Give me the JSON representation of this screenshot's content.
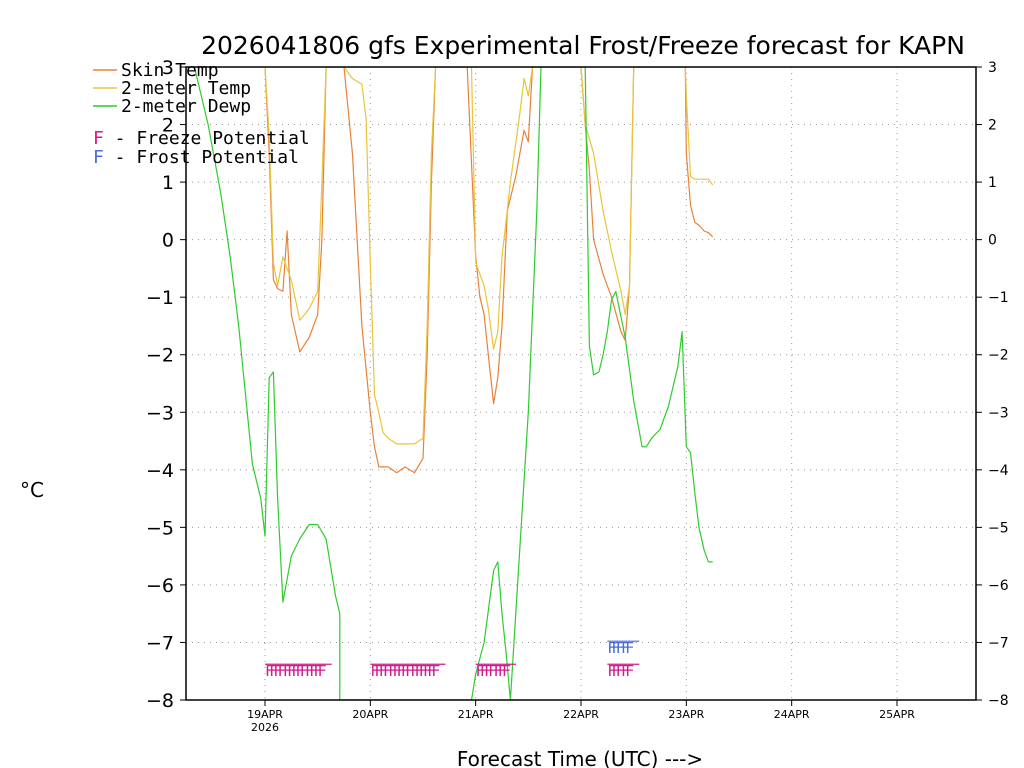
{
  "colors": {
    "skin": "#e8823a",
    "temp2m": "#e8c53a",
    "dewp2m": "#2ecc2e",
    "freeze": "#d21c8c",
    "frost": "#4a6cd4",
    "grid": "#999999"
  },
  "chart_data": {
    "type": "line",
    "title": "2026041806 gfs Experimental Frost/Freeze forecast for KAPN",
    "ylabel": "°C",
    "xlabel": "Forecast Time (UTC) --->",
    "ylim": [
      -8,
      3
    ],
    "xlim": [
      -0.75,
      6.75
    ],
    "yticks": [
      "3",
      "2",
      "1",
      "0",
      "−1",
      "−2",
      "−3",
      "−4",
      "−5",
      "−6",
      "−7",
      "−8"
    ],
    "xticks": [
      {
        "label": "19APR",
        "sub": "2026",
        "day": 0
      },
      {
        "label": "20APR",
        "sub": "",
        "day": 1
      },
      {
        "label": "21APR",
        "sub": "",
        "day": 2
      },
      {
        "label": "22APR",
        "sub": "",
        "day": 3
      },
      {
        "label": "23APR",
        "sub": "",
        "day": 4
      },
      {
        "label": "24APR",
        "sub": "",
        "day": 5
      },
      {
        "label": "25APR",
        "sub": "",
        "day": 6
      }
    ],
    "legend": [
      {
        "label": "Skin Temp",
        "color_key": "skin"
      },
      {
        "label": "2-meter Temp",
        "color_key": "temp2m"
      },
      {
        "label": "2-meter Dewp",
        "color_key": "dewp2m"
      }
    ],
    "potential_legend": [
      {
        "letter": "F",
        "text": " - Freeze Potential",
        "color_key": "freeze"
      },
      {
        "letter": "F",
        "text": " - Frost Potential",
        "color_key": "frost"
      }
    ],
    "series": [
      {
        "name": "Skin Temp",
        "color_key": "skin",
        "x": [
          0.0,
          0.04,
          0.08,
          0.12,
          0.17,
          0.21,
          0.25,
          0.33,
          0.42,
          0.5,
          0.54,
          0.58,
          0.62,
          0.75,
          0.83,
          0.92,
          1.0,
          1.04,
          1.08,
          1.12,
          1.17,
          1.25,
          1.33,
          1.42,
          1.5,
          1.54,
          1.58,
          1.62,
          1.75,
          1.83,
          1.92,
          2.0,
          2.04,
          2.08,
          2.12,
          2.17,
          2.21,
          2.25,
          2.3,
          2.38,
          2.46,
          2.5,
          2.54,
          2.58,
          2.62,
          3.0,
          3.04,
          3.08,
          3.12,
          3.21,
          3.29,
          3.38,
          3.42,
          3.46,
          3.5,
          3.54,
          3.58,
          3.62,
          3.96,
          3.99,
          4.0,
          4.04,
          4.08,
          4.12,
          4.17,
          4.21,
          4.25
        ],
        "y": [
          3,
          1.5,
          -0.7,
          -0.85,
          -0.9,
          0.15,
          -1.3,
          -1.95,
          -1.7,
          -1.3,
          0.0,
          3,
          3,
          3,
          1.5,
          -1.5,
          -3.0,
          -3.6,
          -3.95,
          -3.95,
          -3.95,
          -4.05,
          -3.95,
          -4.05,
          -3.8,
          -2.0,
          1.0,
          3,
          3,
          3,
          3,
          -0.3,
          -1.0,
          -1.3,
          -2.0,
          -2.85,
          -2.4,
          -1.5,
          0.5,
          1.1,
          1.9,
          1.7,
          3,
          3,
          3,
          3,
          2.0,
          1.2,
          0.0,
          -0.6,
          -1.0,
          -1.6,
          -1.75,
          -0.8,
          3,
          3,
          3,
          3,
          3,
          3,
          1.5,
          0.6,
          0.3,
          0.25,
          0.15,
          0.12,
          0.05
        ]
      },
      {
        "name": "2-meter Temp",
        "color_key": "temp2m",
        "x": [
          0.0,
          0.04,
          0.08,
          0.12,
          0.17,
          0.25,
          0.33,
          0.42,
          0.5,
          0.54,
          0.58,
          0.62,
          0.75,
          0.83,
          0.92,
          0.96,
          1.0,
          1.04,
          1.08,
          1.12,
          1.17,
          1.25,
          1.33,
          1.42,
          1.5,
          1.54,
          1.58,
          1.62,
          1.96,
          2.0,
          2.08,
          2.12,
          2.17,
          2.21,
          2.25,
          2.33,
          2.42,
          2.46,
          2.5,
          2.54,
          2.58,
          2.62,
          3.0,
          3.04,
          3.12,
          3.21,
          3.29,
          3.38,
          3.42,
          3.46,
          3.5,
          3.54,
          3.58,
          3.62,
          3.96,
          3.99,
          4.0,
          4.04,
          4.08,
          4.12,
          4.17,
          4.21,
          4.25
        ],
        "y": [
          3,
          1.8,
          -0.4,
          -0.8,
          -0.3,
          -0.7,
          -1.4,
          -1.2,
          -0.9,
          1.0,
          3,
          3,
          3,
          2.8,
          2.7,
          2.1,
          -0.4,
          -2.7,
          -3.0,
          -3.35,
          -3.45,
          -3.55,
          -3.55,
          -3.55,
          -3.45,
          -1.5,
          1.5,
          3,
          3,
          -0.4,
          -0.8,
          -1.2,
          -1.9,
          -1.6,
          -0.3,
          1.0,
          2.2,
          2.8,
          2.5,
          3,
          3,
          3,
          3,
          2.0,
          1.5,
          0.5,
          -0.2,
          -0.9,
          -1.3,
          -0.8,
          3,
          3,
          3,
          3,
          3,
          3,
          2.5,
          1.1,
          1.05,
          1.05,
          1.05,
          1.05,
          0.95
        ]
      },
      {
        "name": "2-meter Dewp",
        "color_key": "dewp2m",
        "x": [
          -0.67,
          -0.54,
          -0.42,
          -0.33,
          -0.25,
          -0.12,
          -0.04,
          0.0,
          0.04,
          0.08,
          0.12,
          0.17,
          0.25,
          0.33,
          0.42,
          0.5,
          0.58,
          0.67,
          0.71,
          0.71,
          1.96,
          2.0,
          2.08,
          2.17,
          2.21,
          2.25,
          2.29,
          2.33,
          2.33,
          2.5,
          2.58,
          2.62,
          2.67,
          2.75,
          2.79,
          3.0,
          3.04,
          3.08,
          3.12,
          3.17,
          3.21,
          3.25,
          3.29,
          3.33,
          3.42,
          3.5,
          3.58,
          3.62,
          3.67,
          3.75,
          3.83,
          3.92,
          3.96,
          4.0,
          4.04,
          4.08,
          4.12,
          4.17,
          4.21,
          4.25
        ],
        "y": [
          3,
          2.0,
          0.8,
          -0.3,
          -1.5,
          -3.9,
          -4.5,
          -5.15,
          -2.4,
          -2.3,
          -4.5,
          -6.3,
          -5.5,
          -5.2,
          -4.95,
          -4.95,
          -5.2,
          -6.2,
          -6.5,
          -8,
          -8,
          -7.55,
          -7.0,
          -5.75,
          -5.6,
          -6.5,
          -7.2,
          -8,
          -8,
          -3.0,
          0.5,
          3,
          3,
          3,
          3,
          3,
          3,
          -1.85,
          -2.35,
          -2.3,
          -2.0,
          -1.6,
          -1.05,
          -0.9,
          -1.7,
          -2.8,
          -3.6,
          -3.6,
          -3.45,
          -3.3,
          -2.9,
          -2.2,
          -1.6,
          -3.6,
          -3.7,
          -4.4,
          -5.0,
          -5.4,
          -5.6,
          -5.6
        ]
      }
    ],
    "potential_marks": [
      {
        "kind": "freeze",
        "y": -7.5,
        "days": [
          0.0,
          0.04,
          0.08,
          0.12,
          0.17,
          0.21,
          0.25,
          0.29,
          0.33,
          0.38,
          0.42,
          0.46,
          0.5
        ]
      },
      {
        "kind": "freeze",
        "y": -7.5,
        "days": [
          1.0,
          1.04,
          1.08,
          1.12,
          1.17,
          1.21,
          1.25,
          1.29,
          1.33,
          1.38,
          1.42,
          1.46,
          1.5,
          1.54,
          1.58
        ]
      },
      {
        "kind": "freeze",
        "y": -7.5,
        "days": [
          2.0,
          2.04,
          2.08,
          2.12,
          2.17,
          2.21,
          2.25
        ]
      },
      {
        "kind": "freeze",
        "y": -7.5,
        "days": [
          3.25,
          3.29,
          3.33,
          3.38,
          3.42
        ]
      },
      {
        "kind": "frost",
        "y": -7.1,
        "days": [
          3.25,
          3.29,
          3.33,
          3.38,
          3.42
        ]
      }
    ]
  }
}
